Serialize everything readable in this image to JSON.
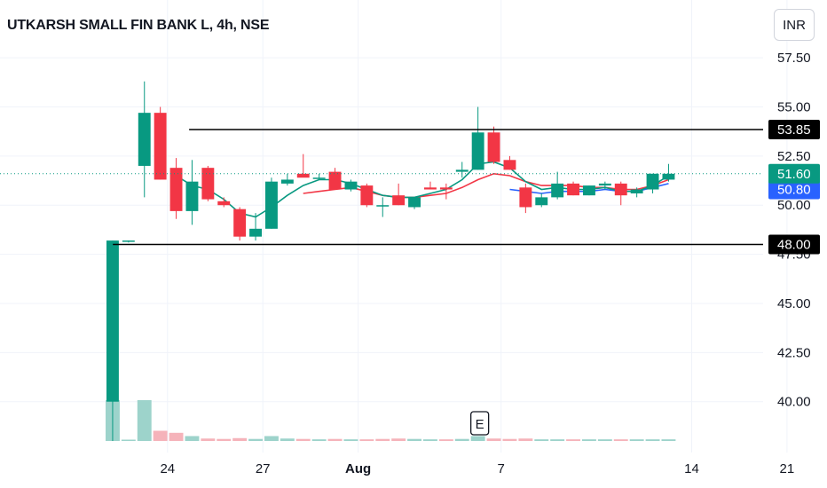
{
  "header": {
    "title": "UTKARSH SMALL FIN BANK L, 4h, NSE",
    "currency": "INR"
  },
  "colors": {
    "up": "#089981",
    "down": "#f23645",
    "up_volume": "#9dd3cb",
    "down_volume": "#f5b3ba",
    "ma_fast": "#089981",
    "ma_slow": "#f23645",
    "ma_blue": "#2962ff",
    "grid": "#f0f3fa",
    "level_line": "#000000"
  },
  "chart_data": {
    "type": "candlestick",
    "y_ticks": [
      "57.50",
      "55.00",
      "52.50",
      "50.00",
      "47.50",
      "45.00",
      "42.50",
      "40.00"
    ],
    "ylim": [
      38.0,
      58.5
    ],
    "x_ticks": [
      {
        "label": "24",
        "index": 2,
        "bold": false
      },
      {
        "label": "27",
        "index": 8,
        "bold": false
      },
      {
        "label": "Aug",
        "index": 14,
        "bold": true
      },
      {
        "label": "7",
        "index": 23,
        "bold": false
      },
      {
        "label": "14",
        "index": 35,
        "bold": false
      },
      {
        "label": "21",
        "index": 41,
        "bold": false
      }
    ],
    "candles": [
      {
        "o": 40.0,
        "h": 48.2,
        "l": 38.0,
        "c": 48.2
      },
      {
        "o": 48.2,
        "h": 48.2,
        "l": 48.1,
        "c": 48.2
      },
      {
        "o": 52.0,
        "h": 56.3,
        "l": 50.4,
        "c": 54.7
      },
      {
        "o": 54.7,
        "h": 55.0,
        "l": 51.3,
        "c": 51.3
      },
      {
        "o": 51.9,
        "h": 52.4,
        "l": 49.3,
        "c": 49.7
      },
      {
        "o": 49.7,
        "h": 52.3,
        "l": 49.0,
        "c": 51.2
      },
      {
        "o": 51.9,
        "h": 52.0,
        "l": 50.2,
        "c": 50.3
      },
      {
        "o": 50.2,
        "h": 50.4,
        "l": 49.9,
        "c": 50.0
      },
      {
        "o": 49.8,
        "h": 49.9,
        "l": 48.2,
        "c": 48.4
      },
      {
        "o": 48.4,
        "h": 49.6,
        "l": 48.2,
        "c": 48.8
      },
      {
        "o": 48.8,
        "h": 51.4,
        "l": 48.8,
        "c": 51.2
      },
      {
        "o": 51.1,
        "h": 51.6,
        "l": 51.0,
        "c": 51.3
      },
      {
        "o": 51.6,
        "h": 52.6,
        "l": 51.5,
        "c": 51.4
      },
      {
        "o": 51.4,
        "h": 51.6,
        "l": 51.3,
        "c": 51.4
      },
      {
        "o": 51.7,
        "h": 51.9,
        "l": 50.8,
        "c": 50.8
      },
      {
        "o": 50.8,
        "h": 51.3,
        "l": 50.7,
        "c": 51.2
      },
      {
        "o": 51.0,
        "h": 51.1,
        "l": 49.9,
        "c": 50.0
      },
      {
        "o": 50.0,
        "h": 50.4,
        "l": 49.4,
        "c": 50.0
      },
      {
        "o": 50.5,
        "h": 51.1,
        "l": 50.0,
        "c": 50.0
      },
      {
        "o": 49.9,
        "h": 50.4,
        "l": 49.8,
        "c": 50.4
      },
      {
        "o": 50.9,
        "h": 51.2,
        "l": 50.8,
        "c": 50.8
      },
      {
        "o": 50.9,
        "h": 51.1,
        "l": 50.3,
        "c": 50.8
      },
      {
        "o": 51.7,
        "h": 52.2,
        "l": 51.4,
        "c": 51.8
      },
      {
        "o": 51.8,
        "h": 55.0,
        "l": 51.8,
        "c": 53.7
      },
      {
        "o": 53.7,
        "h": 54.0,
        "l": 52.1,
        "c": 52.2
      },
      {
        "o": 52.3,
        "h": 52.5,
        "l": 51.8,
        "c": 51.8
      },
      {
        "o": 50.9,
        "h": 51.1,
        "l": 49.6,
        "c": 49.9
      },
      {
        "o": 50.0,
        "h": 50.6,
        "l": 49.9,
        "c": 50.4
      },
      {
        "o": 50.4,
        "h": 51.7,
        "l": 50.3,
        "c": 51.1
      },
      {
        "o": 51.1,
        "h": 51.2,
        "l": 50.5,
        "c": 50.5
      },
      {
        "o": 50.5,
        "h": 51.0,
        "l": 50.5,
        "c": 51.0
      },
      {
        "o": 51.0,
        "h": 51.2,
        "l": 50.8,
        "c": 51.1
      },
      {
        "o": 51.1,
        "h": 51.2,
        "l": 50.0,
        "c": 50.5
      },
      {
        "o": 50.6,
        "h": 50.9,
        "l": 50.4,
        "c": 50.8
      },
      {
        "o": 50.8,
        "h": 51.6,
        "l": 50.6,
        "c": 51.6
      },
      {
        "o": 51.3,
        "h": 52.1,
        "l": 51.2,
        "c": 51.6
      }
    ],
    "volume": [
      {
        "v": 100,
        "up": true
      },
      {
        "v": 2,
        "up": true
      },
      {
        "v": 100,
        "up": true
      },
      {
        "v": 25,
        "up": false
      },
      {
        "v": 20,
        "up": false
      },
      {
        "v": 12,
        "up": true
      },
      {
        "v": 6,
        "up": false
      },
      {
        "v": 5,
        "up": false
      },
      {
        "v": 7,
        "up": false
      },
      {
        "v": 5,
        "up": true
      },
      {
        "v": 12,
        "up": true
      },
      {
        "v": 6,
        "up": true
      },
      {
        "v": 5,
        "up": false
      },
      {
        "v": 4,
        "up": true
      },
      {
        "v": 5,
        "up": false
      },
      {
        "v": 4,
        "up": true
      },
      {
        "v": 4,
        "up": false
      },
      {
        "v": 5,
        "up": false
      },
      {
        "v": 6,
        "up": false
      },
      {
        "v": 5,
        "up": true
      },
      {
        "v": 4,
        "up": true
      },
      {
        "v": 4,
        "up": false
      },
      {
        "v": 5,
        "up": true
      },
      {
        "v": 12,
        "up": true
      },
      {
        "v": 6,
        "up": false
      },
      {
        "v": 5,
        "up": false
      },
      {
        "v": 6,
        "up": false
      },
      {
        "v": 4,
        "up": true
      },
      {
        "v": 4,
        "up": true
      },
      {
        "v": 4,
        "up": false
      },
      {
        "v": 4,
        "up": true
      },
      {
        "v": 4,
        "up": true
      },
      {
        "v": 4,
        "up": false
      },
      {
        "v": 4,
        "up": true
      },
      {
        "v": 4,
        "up": true
      },
      {
        "v": 4,
        "up": true
      }
    ],
    "ma_fast": [
      {
        "i": 4,
        "v": 51.5
      },
      {
        "i": 5,
        "v": 51.0
      },
      {
        "i": 6,
        "v": 50.8
      },
      {
        "i": 7,
        "v": 50.3
      },
      {
        "i": 8,
        "v": 49.6
      },
      {
        "i": 9,
        "v": 49.4
      },
      {
        "i": 10,
        "v": 49.9
      },
      {
        "i": 11,
        "v": 50.5
      },
      {
        "i": 12,
        "v": 51.0
      },
      {
        "i": 13,
        "v": 51.3
      },
      {
        "i": 14,
        "v": 51.3
      },
      {
        "i": 15,
        "v": 51.1
      },
      {
        "i": 16,
        "v": 50.8
      },
      {
        "i": 17,
        "v": 50.5
      },
      {
        "i": 18,
        "v": 50.4
      },
      {
        "i": 19,
        "v": 50.4
      },
      {
        "i": 20,
        "v": 50.6
      },
      {
        "i": 21,
        "v": 50.8
      },
      {
        "i": 22,
        "v": 51.3
      },
      {
        "i": 23,
        "v": 52.1
      },
      {
        "i": 24,
        "v": 52.2
      },
      {
        "i": 25,
        "v": 51.9
      },
      {
        "i": 26,
        "v": 51.2
      },
      {
        "i": 27,
        "v": 50.8
      },
      {
        "i": 28,
        "v": 50.9
      },
      {
        "i": 29,
        "v": 50.8
      },
      {
        "i": 30,
        "v": 50.8
      },
      {
        "i": 31,
        "v": 50.9
      },
      {
        "i": 32,
        "v": 50.7
      },
      {
        "i": 33,
        "v": 50.7
      },
      {
        "i": 34,
        "v": 51.0
      },
      {
        "i": 35,
        "v": 51.5
      }
    ],
    "ma_slow": [
      {
        "i": 12,
        "v": 50.6
      },
      {
        "i": 13,
        "v": 50.7
      },
      {
        "i": 14,
        "v": 50.8
      },
      {
        "i": 15,
        "v": 50.9
      },
      {
        "i": 16,
        "v": 50.7
      },
      {
        "i": 17,
        "v": 50.5
      },
      {
        "i": 18,
        "v": 50.4
      },
      {
        "i": 19,
        "v": 50.4
      },
      {
        "i": 20,
        "v": 50.5
      },
      {
        "i": 21,
        "v": 50.6
      },
      {
        "i": 22,
        "v": 50.9
      },
      {
        "i": 23,
        "v": 51.3
      },
      {
        "i": 24,
        "v": 51.6
      },
      {
        "i": 25,
        "v": 51.5
      },
      {
        "i": 26,
        "v": 51.2
      },
      {
        "i": 27,
        "v": 51.0
      },
      {
        "i": 28,
        "v": 51.0
      },
      {
        "i": 29,
        "v": 51.0
      },
      {
        "i": 30,
        "v": 50.9
      },
      {
        "i": 31,
        "v": 50.9
      },
      {
        "i": 32,
        "v": 50.8
      },
      {
        "i": 33,
        "v": 50.8
      },
      {
        "i": 34,
        "v": 51.0
      },
      {
        "i": 35,
        "v": 51.3
      }
    ],
    "ma_blue": [
      {
        "i": 25,
        "v": 50.8
      },
      {
        "i": 26,
        "v": 50.7
      },
      {
        "i": 27,
        "v": 50.6
      },
      {
        "i": 28,
        "v": 50.7
      },
      {
        "i": 29,
        "v": 50.7
      },
      {
        "i": 30,
        "v": 50.7
      },
      {
        "i": 31,
        "v": 50.8
      },
      {
        "i": 32,
        "v": 50.7
      },
      {
        "i": 33,
        "v": 50.7
      },
      {
        "i": 34,
        "v": 50.9
      },
      {
        "i": 35,
        "v": 51.1
      }
    ],
    "levels": [
      {
        "value": 53.85,
        "label": "53.85",
        "from_index": 2.8
      },
      {
        "value": 48.0,
        "label": "48.00",
        "from_index": -2.0
      }
    ],
    "last_price": {
      "value": 51.6,
      "label": "51.60"
    },
    "ma_tag": {
      "value": 50.8,
      "label": "50.80"
    },
    "earnings_marker": {
      "label": "E",
      "index": 23.5
    }
  }
}
